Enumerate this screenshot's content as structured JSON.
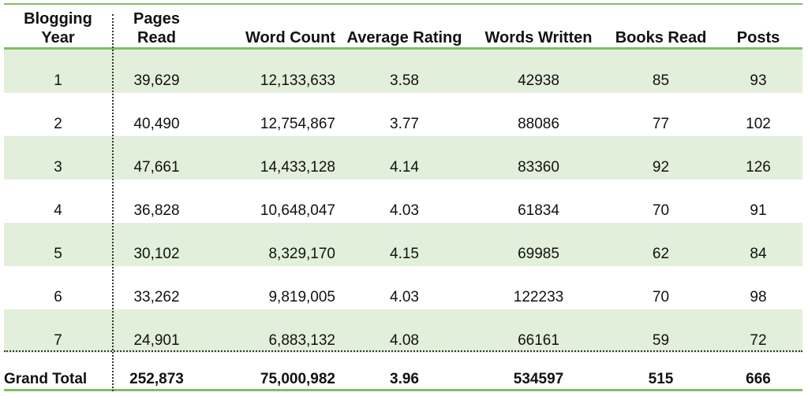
{
  "headers": [
    "Blogging Year",
    "Pages Read",
    "Word Count",
    "Average Rating",
    "Words Written",
    "Books Read",
    "Posts"
  ],
  "header_lines": [
    [
      "Blogging",
      "Year"
    ],
    [
      "Pages",
      "Read"
    ],
    [
      "Word Count"
    ],
    [
      "Average Rating"
    ],
    [
      "Words Written"
    ],
    [
      "Books Read"
    ],
    [
      "Posts"
    ]
  ],
  "rows": [
    [
      "1",
      "39,629",
      "12,133,633",
      "3.58",
      "42938",
      "85",
      "93"
    ],
    [
      "2",
      "40,490",
      "12,754,867",
      "3.77",
      "88086",
      "77",
      "102"
    ],
    [
      "3",
      "47,661",
      "14,433,128",
      "4.14",
      "83360",
      "92",
      "126"
    ],
    [
      "4",
      "36,828",
      "10,648,047",
      "4.03",
      "61834",
      "70",
      "91"
    ],
    [
      "5",
      "30,102",
      "8,329,170",
      "4.15",
      "69985",
      "62",
      "84"
    ],
    [
      "6",
      "33,262",
      "9,819,005",
      "4.03",
      "122233",
      "70",
      "98"
    ],
    [
      "7",
      "24,901",
      "6,883,132",
      "4.08",
      "66161",
      "59",
      "72"
    ]
  ],
  "total": [
    "Grand Total",
    "252,873",
    "75,000,982",
    "3.96",
    "534597",
    "515",
    "666"
  ],
  "colors": {
    "accent_line": "#7fbf5f",
    "band": "#e2efda"
  }
}
